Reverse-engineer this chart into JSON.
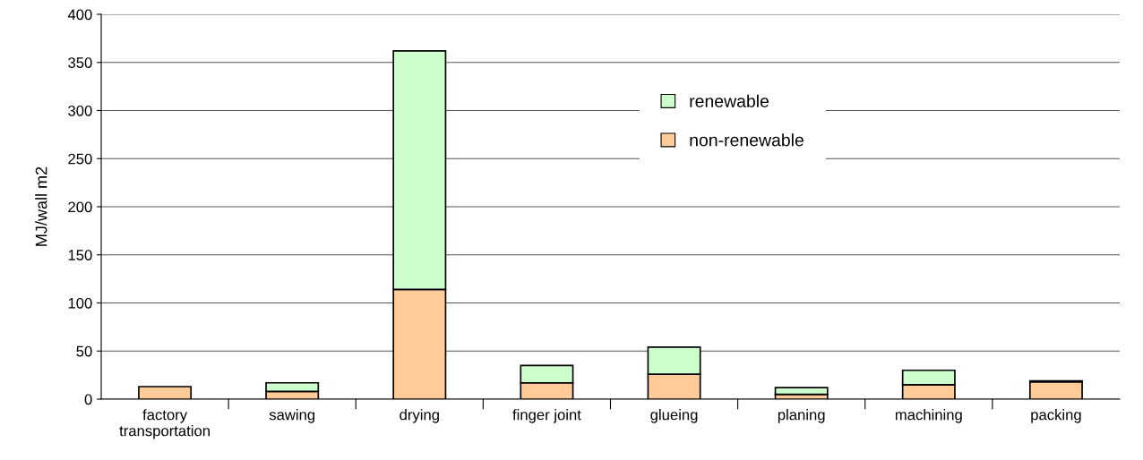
{
  "chart_data": {
    "type": "bar",
    "stacked": true,
    "ylabel": "MJ/wall m2",
    "categories": [
      "factory\ntransportation",
      "sawing",
      "drying",
      "finger joint",
      "glueing",
      "planing",
      "machining",
      "packing"
    ],
    "series": [
      {
        "name": "non-renewable",
        "color": "#ffcc99",
        "values": [
          13,
          8,
          114,
          17,
          26,
          5,
          15,
          18
        ]
      },
      {
        "name": "renewable",
        "color": "#ccffcc",
        "values": [
          null,
          9,
          248,
          18,
          28,
          7,
          15,
          1
        ]
      }
    ],
    "ylim": [
      0,
      400
    ],
    "yticks": [
      0,
      50,
      100,
      150,
      200,
      250,
      300,
      350,
      400
    ],
    "grid": "y",
    "legend": "top"
  }
}
